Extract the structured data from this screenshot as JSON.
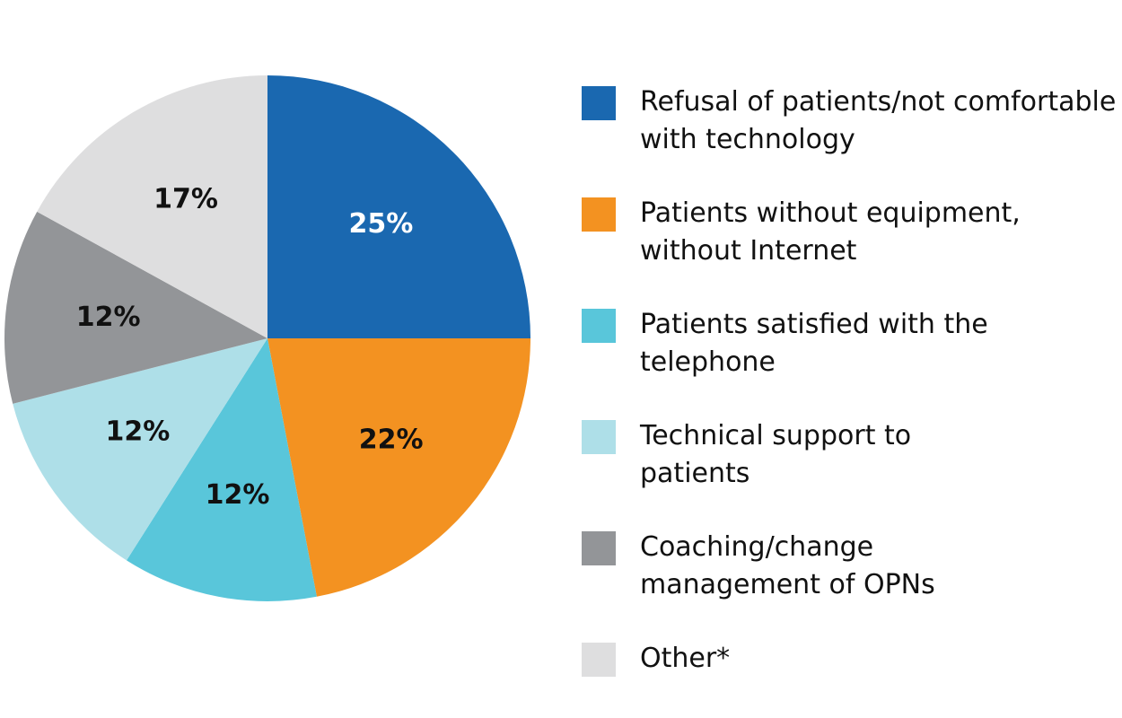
{
  "chart_data": {
    "type": "pie",
    "categories": [
      "Refusal of patients/not comfortable with technology",
      "Patients without equipment, without Internet",
      "Patients satisfied with the telephone",
      "Technical support to patients",
      "Coaching/change management of OPNs",
      "Other*"
    ],
    "values": [
      25,
      22,
      12,
      12,
      12,
      17
    ],
    "value_labels": [
      "25%",
      "22%",
      "12%",
      "12%",
      "12%",
      "17%"
    ],
    "colors": [
      "#1a68b0",
      "#f39221",
      "#59c6da",
      "#aedfe8",
      "#939598",
      "#dededf"
    ]
  }
}
